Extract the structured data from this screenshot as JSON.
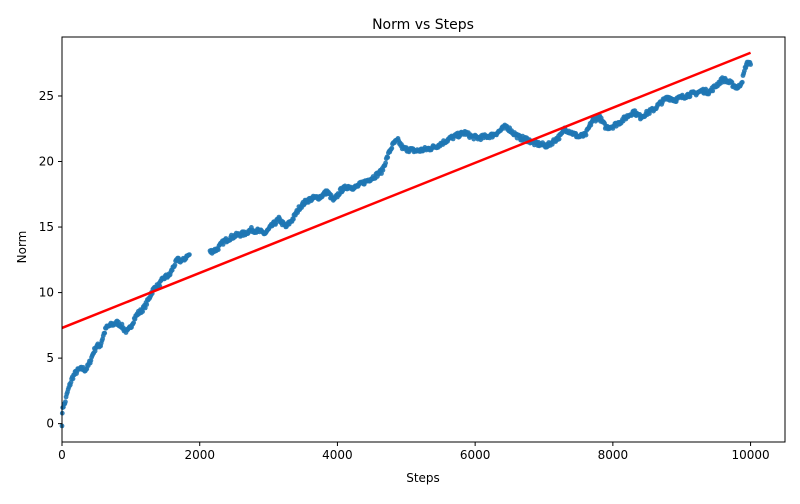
{
  "chart_data": {
    "type": "scatter",
    "title": "Norm vs Steps",
    "xlabel": "Steps",
    "ylabel": "Norm",
    "xlim": [
      0,
      10500
    ],
    "ylim": [
      -1.4,
      29.5
    ],
    "xticks": [
      0,
      2000,
      4000,
      6000,
      8000,
      10000
    ],
    "yticks": [
      0,
      5,
      10,
      15,
      20,
      25
    ],
    "grid": false,
    "legend": "none",
    "colors": {
      "points": "#1f77b4",
      "fit": "#ff0000"
    },
    "fit_line": {
      "x": [
        0,
        10000
      ],
      "y": [
        7.3,
        28.3
      ]
    },
    "trace": [
      [
        0,
        0.0
      ],
      [
        10,
        1.3
      ],
      [
        40,
        1.5
      ],
      [
        80,
        2.4
      ],
      [
        110,
        2.9
      ],
      [
        150,
        3.5
      ],
      [
        200,
        3.9
      ],
      [
        240,
        4.1
      ],
      [
        300,
        4.2
      ],
      [
        340,
        4.1
      ],
      [
        380,
        4.4
      ],
      [
        420,
        4.9
      ],
      [
        460,
        5.5
      ],
      [
        500,
        5.9
      ],
      [
        560,
        6.0
      ],
      [
        600,
        6.7
      ],
      [
        640,
        7.3
      ],
      [
        700,
        7.5
      ],
      [
        750,
        7.6
      ],
      [
        800,
        7.7
      ],
      [
        860,
        7.5
      ],
      [
        900,
        7.2
      ],
      [
        950,
        7.0
      ],
      [
        1000,
        7.4
      ],
      [
        1050,
        8.0
      ],
      [
        1100,
        8.4
      ],
      [
        1150,
        8.6
      ],
      [
        1200,
        8.9
      ],
      [
        1260,
        9.5
      ],
      [
        1300,
        10.0
      ],
      [
        1350,
        10.4
      ],
      [
        1400,
        10.5
      ],
      [
        1450,
        10.9
      ],
      [
        1500,
        11.2
      ],
      [
        1560,
        11.3
      ],
      [
        1620,
        12.0
      ],
      [
        1680,
        12.5
      ],
      [
        1750,
        12.4
      ],
      [
        1800,
        12.7
      ],
      [
        1850,
        12.9
      ],
      [
        2150,
        13.1
      ],
      [
        2250,
        13.3
      ],
      [
        2350,
        13.9
      ],
      [
        2450,
        14.2
      ],
      [
        2550,
        14.4
      ],
      [
        2650,
        14.5
      ],
      [
        2750,
        14.8
      ],
      [
        2850,
        14.7
      ],
      [
        2950,
        14.5
      ],
      [
        3050,
        15.1
      ],
      [
        3150,
        15.6
      ],
      [
        3250,
        15.0
      ],
      [
        3350,
        15.6
      ],
      [
        3450,
        16.5
      ],
      [
        3550,
        17.0
      ],
      [
        3650,
        17.2
      ],
      [
        3750,
        17.3
      ],
      [
        3850,
        17.7
      ],
      [
        3950,
        17.0
      ],
      [
        4050,
        17.8
      ],
      [
        4150,
        18.1
      ],
      [
        4250,
        18.0
      ],
      [
        4350,
        18.3
      ],
      [
        4450,
        18.6
      ],
      [
        4550,
        18.9
      ],
      [
        4650,
        19.3
      ],
      [
        4700,
        20.0
      ],
      [
        4760,
        20.8
      ],
      [
        4820,
        21.4
      ],
      [
        4880,
        21.6
      ],
      [
        4950,
        21.0
      ],
      [
        5050,
        20.9
      ],
      [
        5150,
        20.8
      ],
      [
        5250,
        20.9
      ],
      [
        5350,
        21.0
      ],
      [
        5450,
        21.2
      ],
      [
        5550,
        21.5
      ],
      [
        5650,
        21.8
      ],
      [
        5750,
        22.0
      ],
      [
        5850,
        22.2
      ],
      [
        5950,
        21.9
      ],
      [
        6050,
        21.8
      ],
      [
        6150,
        21.9
      ],
      [
        6250,
        22.0
      ],
      [
        6350,
        22.3
      ],
      [
        6450,
        22.7
      ],
      [
        6550,
        22.2
      ],
      [
        6650,
        21.8
      ],
      [
        6750,
        21.7
      ],
      [
        6850,
        21.4
      ],
      [
        6950,
        21.3
      ],
      [
        7050,
        21.2
      ],
      [
        7150,
        21.6
      ],
      [
        7250,
        22.0
      ],
      [
        7300,
        22.5
      ],
      [
        7400,
        22.2
      ],
      [
        7500,
        21.9
      ],
      [
        7600,
        22.0
      ],
      [
        7700,
        23.1
      ],
      [
        7800,
        23.4
      ],
      [
        7900,
        22.6
      ],
      [
        8000,
        22.7
      ],
      [
        8100,
        23.0
      ],
      [
        8200,
        23.4
      ],
      [
        8300,
        23.8
      ],
      [
        8400,
        23.4
      ],
      [
        8500,
        23.7
      ],
      [
        8600,
        24.0
      ],
      [
        8700,
        24.5
      ],
      [
        8800,
        24.9
      ],
      [
        8900,
        24.7
      ],
      [
        9000,
        24.9
      ],
      [
        9100,
        25.1
      ],
      [
        9200,
        25.2
      ],
      [
        9300,
        25.4
      ],
      [
        9400,
        25.3
      ],
      [
        9500,
        25.8
      ],
      [
        9600,
        26.3
      ],
      [
        9700,
        26.0
      ],
      [
        9760,
        25.8
      ],
      [
        9820,
        25.6
      ],
      [
        9880,
        26.2
      ],
      [
        9930,
        27.3
      ],
      [
        9970,
        27.6
      ],
      [
        10000,
        27.4
      ]
    ]
  }
}
